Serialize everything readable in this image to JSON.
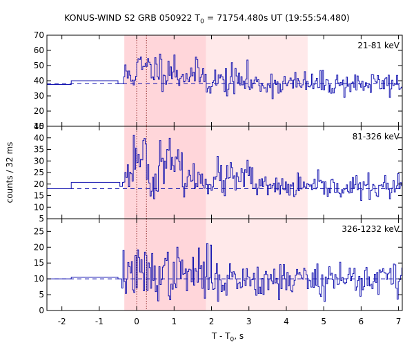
{
  "title_prefix": "KONUS-WIND S2 GRB 050922 T",
  "title_sub": "0",
  "title_suffix": " = 71754.480s UT (19:55:54.480)",
  "ylabel": "counts / 32 ms",
  "xlabel_prefix": "T - T",
  "xlabel_sub": "0",
  "xlabel_suffix": ", s",
  "colors": {
    "curve": "#1515b0",
    "background_line": "#1515b0",
    "shade_light": "#ffe9ea",
    "shade_dark": "#ffd6da",
    "frame": "#000000",
    "marker_lines": "#7a0000"
  },
  "chart_data": {
    "type": "line",
    "step": true,
    "xlim": [
      -2.4,
      7.1
    ],
    "xticks": [
      -2,
      -1,
      0,
      1,
      2,
      3,
      4,
      5,
      6,
      7
    ],
    "grid": false,
    "shaded_intervals": [
      {
        "from": -0.33,
        "to": 4.57,
        "style": "light"
      },
      {
        "from": -0.33,
        "to": 1.85,
        "style": "dark"
      }
    ],
    "vertical_markers": [
      0.0,
      0.26
    ],
    "panels": [
      {
        "label": "21-81 keV",
        "ylim": [
          10,
          70
        ],
        "yticks": [
          10,
          20,
          30,
          40,
          50,
          60,
          70
        ],
        "background": 38,
        "pre": [
          {
            "from": -2.4,
            "to": -1.75,
            "value": 37.5
          },
          {
            "from": -1.75,
            "to": -0.5,
            "value": 40
          },
          {
            "from": -0.5,
            "to": -0.35,
            "value": 38
          }
        ],
        "main": {
          "from": -0.35,
          "to": 7.1,
          "dt": 0.032,
          "seed": 11,
          "profile": [
            {
              "from": -0.35,
              "to": 0.0,
              "mean": 44,
              "sd": 5
            },
            {
              "from": 0.0,
              "to": 1.0,
              "mean": 48,
              "sd": 6
            },
            {
              "from": 1.0,
              "to": 1.8,
              "mean": 44,
              "sd": 5
            },
            {
              "from": 1.8,
              "to": 3.0,
              "mean": 40,
              "sd": 5
            },
            {
              "from": 3.0,
              "to": 7.1,
              "mean": 38,
              "sd": 4
            }
          ]
        }
      },
      {
        "label": "81-326 keV",
        "ylim": [
          5,
          45
        ],
        "yticks": [
          5,
          10,
          15,
          20,
          25,
          30,
          35,
          40,
          45
        ],
        "background": 18,
        "pre": [
          {
            "from": -2.4,
            "to": -1.75,
            "value": 18
          },
          {
            "from": -1.75,
            "to": -0.45,
            "value": 20.7
          },
          {
            "from": -0.45,
            "to": -0.38,
            "value": 19
          }
        ],
        "main": {
          "from": -0.38,
          "to": 7.1,
          "dt": 0.032,
          "seed": 23,
          "profile": [
            {
              "from": -0.38,
              "to": -0.1,
              "mean": 24,
              "sd": 3
            },
            {
              "from": -0.1,
              "to": 0.3,
              "mean": 33,
              "sd": 5
            },
            {
              "from": 0.3,
              "to": 0.55,
              "mean": 20,
              "sd": 3
            },
            {
              "from": 0.55,
              "to": 0.9,
              "mean": 31,
              "sd": 4
            },
            {
              "from": 0.9,
              "to": 1.2,
              "mean": 28,
              "sd": 3
            },
            {
              "from": 1.2,
              "to": 1.9,
              "mean": 22,
              "sd": 3
            },
            {
              "from": 1.9,
              "to": 3.2,
              "mean": 22,
              "sd": 4
            },
            {
              "from": 3.2,
              "to": 7.1,
              "mean": 18.5,
              "sd": 2.5
            }
          ]
        }
      },
      {
        "label": "326-1232 keV",
        "ylim": [
          0,
          29
        ],
        "yticks": [
          0,
          5,
          10,
          15,
          20,
          25
        ],
        "background": 10,
        "pre": [
          {
            "from": -2.4,
            "to": -1.75,
            "value": 10
          },
          {
            "from": -1.75,
            "to": -0.5,
            "value": 10.5
          },
          {
            "from": -0.5,
            "to": -0.4,
            "value": 10
          }
        ],
        "main": {
          "from": -0.4,
          "to": 7.1,
          "dt": 0.032,
          "seed": 37,
          "profile": [
            {
              "from": -0.4,
              "to": 2.0,
              "mean": 11.5,
              "sd": 4
            },
            {
              "from": 2.0,
              "to": 7.1,
              "mean": 10,
              "sd": 3
            }
          ]
        }
      }
    ]
  }
}
